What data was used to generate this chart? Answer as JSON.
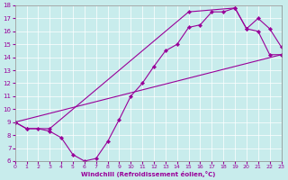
{
  "xlabel": "Windchill (Refroidissement éolien,°C)",
  "xlim": [
    0,
    23
  ],
  "ylim": [
    6,
    18
  ],
  "xticks": [
    0,
    1,
    2,
    3,
    4,
    5,
    6,
    7,
    8,
    9,
    10,
    11,
    12,
    13,
    14,
    15,
    16,
    17,
    18,
    19,
    20,
    21,
    22,
    23
  ],
  "yticks": [
    6,
    7,
    8,
    9,
    10,
    11,
    12,
    13,
    14,
    15,
    16,
    17,
    18
  ],
  "bg_color": "#c8ecec",
  "line_color": "#990099",
  "line1_x": [
    0,
    1,
    2,
    3,
    4,
    5,
    6,
    7,
    8,
    9,
    10,
    11,
    12,
    13,
    14,
    15,
    16,
    17,
    18,
    19,
    20,
    21,
    22,
    23
  ],
  "line1_y": [
    9.0,
    8.5,
    8.5,
    8.3,
    7.8,
    6.5,
    6.0,
    6.2,
    7.5,
    9.2,
    11.0,
    12.0,
    13.3,
    14.5,
    15.0,
    16.3,
    16.5,
    17.5,
    17.5,
    17.8,
    16.2,
    17.0,
    16.2,
    14.8
  ],
  "line2_x": [
    0,
    1,
    3,
    15,
    19,
    20,
    21,
    22,
    23
  ],
  "line2_y": [
    9.0,
    8.5,
    8.5,
    17.5,
    17.8,
    16.2,
    16.0,
    14.2,
    14.2
  ],
  "line3_x": [
    0,
    23
  ],
  "line3_y": [
    9.0,
    14.2
  ]
}
